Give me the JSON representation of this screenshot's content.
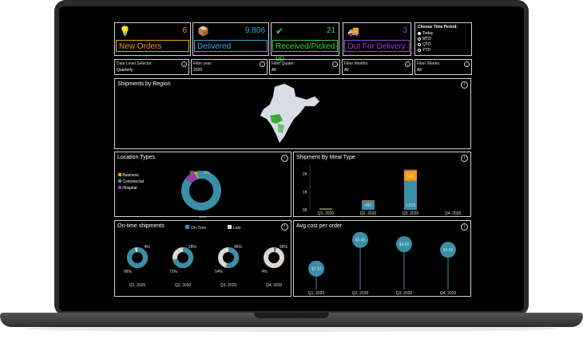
{
  "kpis": [
    {
      "label": "New Orders",
      "value": "6",
      "color": "#f39c12",
      "icon": "lightbulb-icon"
    },
    {
      "label": "Delivered",
      "value": "9,806",
      "color": "#3fa7d6",
      "icon": "package-icon"
    },
    {
      "label": "Received/Picked-up",
      "value": "21",
      "color": "#3ecf3e",
      "icon": "check-icon"
    },
    {
      "label": "Out For Delivery",
      "value": "3",
      "color": "#9b3fd6",
      "icon": "truck-icon"
    }
  ],
  "time_period": {
    "title": "Choose Time Period:",
    "options": [
      "Today",
      "MTD",
      "QTD",
      "YTD"
    ],
    "selected": "Today"
  },
  "filters": [
    {
      "title": "Date Level Selector:",
      "value": "Quarterly"
    },
    {
      "title": "Filter year:",
      "value": "2020"
    },
    {
      "title": "Filter Quater:",
      "value": "All"
    },
    {
      "title": "Filter Months:",
      "value": "All"
    },
    {
      "title": "Filter Weeks:",
      "value": "All"
    }
  ],
  "region": {
    "title": "Shipments by Region"
  },
  "location": {
    "title": "Location Types",
    "legend": [
      "Business",
      "Commercial",
      "Hospital"
    ],
    "colors": [
      "#f39c12",
      "#3a8fa8",
      "#8e3fa8"
    ],
    "values": [
      2,
      89,
      9
    ],
    "labels": [
      "2%",
      "89%",
      "9%"
    ]
  },
  "meal": {
    "title": "Shipment By Meal Type",
    "yticks": [
      "2K",
      "1K",
      "0K"
    ],
    "categories": [
      "Q1, 2020",
      "Q2, 2020",
      "Q3, 2020",
      "Q4, 2020"
    ],
    "bar_labels": [
      "",
      "482",
      "1,615",
      ""
    ],
    "bar_labels_top": [
      "",
      "",
      "585",
      ""
    ],
    "stacks": [
      [
        40,
        30,
        0
      ],
      [
        482,
        40,
        20
      ],
      [
        1615,
        585,
        60
      ],
      [
        0,
        0,
        0
      ]
    ],
    "ymax": 2500
  },
  "ontime": {
    "title": "On-time shipments",
    "legend": [
      "On-Time",
      "Late"
    ],
    "colors": [
      "#3a8fa8",
      "#e0d8d0"
    ],
    "categories": [
      "Q1, 2020",
      "Q2, 2020",
      "Q3, 2020",
      "Q4, 2020"
    ],
    "ontime": [
      96,
      72,
      54,
      4
    ],
    "ontime_labels": [
      "96%",
      "72%",
      "54%",
      "4%"
    ],
    "late_labels": [
      "4%",
      "28%",
      "46%",
      "96%"
    ]
  },
  "avgcost": {
    "title": "Avg cost per order",
    "categories": [
      "Q1, 2020",
      "Q2, 2020",
      "Q3, 2020",
      "Q4, 2020"
    ],
    "values": [
      2.3,
      5.45,
      4.98,
      4.36
    ],
    "labels": [
      "$2.30",
      "$5.45",
      "$4.98",
      "$4.36"
    ]
  }
}
